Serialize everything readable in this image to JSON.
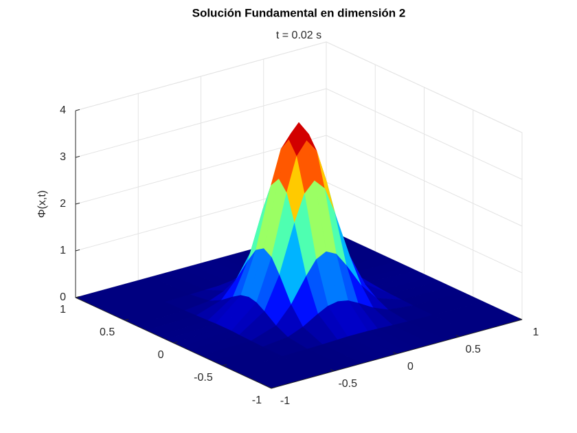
{
  "chart_data": {
    "type": "surface",
    "title": "Solución Fundamental en dimensión 2",
    "subtitle": "t = 0.02 s",
    "zlabel": "Φ(x,t)",
    "x": [
      -1,
      -0.6,
      -0.4,
      -0.28,
      -0.16,
      -0.08,
      0,
      0.08,
      0.16,
      0.28,
      0.4,
      0.6,
      1
    ],
    "y": [
      -1,
      -0.6,
      -0.4,
      -0.28,
      -0.16,
      -0.08,
      0,
      0.08,
      0.16,
      0.28,
      0.4,
      0.6,
      1
    ],
    "z": [
      [
        0,
        0,
        0,
        0,
        0,
        0,
        0,
        0,
        0,
        0,
        0,
        0,
        0
      ],
      [
        0,
        0,
        0.01,
        0.02,
        0.03,
        0.04,
        0.04,
        0.04,
        0.03,
        0.02,
        0.01,
        0,
        0
      ],
      [
        0,
        0.01,
        0.07,
        0.2,
        0.39,
        0.5,
        0.54,
        0.5,
        0.39,
        0.2,
        0.07,
        0.01,
        0
      ],
      [
        0,
        0.02,
        0.2,
        0.56,
        1.08,
        1.38,
        1.49,
        1.38,
        1.08,
        0.56,
        0.2,
        0.02,
        0
      ],
      [
        0,
        0.03,
        0.39,
        1.08,
        2.1,
        2.67,
        2.89,
        2.67,
        2.1,
        1.08,
        0.39,
        0.03,
        0
      ],
      [
        0,
        0.04,
        0.5,
        1.38,
        2.67,
        3.39,
        3.67,
        3.39,
        2.67,
        1.38,
        0.5,
        0.04,
        0
      ],
      [
        0,
        0.04,
        0.54,
        1.49,
        2.89,
        3.67,
        3.98,
        3.67,
        2.89,
        1.49,
        0.54,
        0.04,
        0
      ],
      [
        0,
        0.04,
        0.5,
        1.38,
        2.67,
        3.39,
        3.67,
        3.39,
        2.67,
        1.38,
        0.5,
        0.04,
        0
      ],
      [
        0,
        0.03,
        0.39,
        1.08,
        2.1,
        2.67,
        2.89,
        2.67,
        2.1,
        1.08,
        0.39,
        0.03,
        0
      ],
      [
        0,
        0.02,
        0.2,
        0.56,
        1.08,
        1.38,
        1.49,
        1.38,
        1.08,
        0.56,
        0.2,
        0.02,
        0
      ],
      [
        0,
        0.01,
        0.07,
        0.2,
        0.39,
        0.5,
        0.54,
        0.5,
        0.39,
        0.2,
        0.07,
        0.01,
        0
      ],
      [
        0,
        0,
        0.01,
        0.02,
        0.03,
        0.04,
        0.04,
        0.04,
        0.03,
        0.02,
        0.01,
        0,
        0
      ],
      [
        0,
        0,
        0,
        0,
        0,
        0,
        0,
        0,
        0,
        0,
        0,
        0,
        0
      ]
    ],
    "xlim": [
      -1,
      1
    ],
    "ylim": [
      -1,
      1
    ],
    "zlim": [
      0,
      4
    ],
    "xticks": [
      -1,
      -0.5,
      0,
      0.5,
      1
    ],
    "yticks": [
      -1,
      -0.5,
      0,
      0.5,
      1
    ],
    "zticks": [
      0,
      1,
      2,
      3,
      4
    ],
    "colormap": "jet",
    "grid": true
  }
}
